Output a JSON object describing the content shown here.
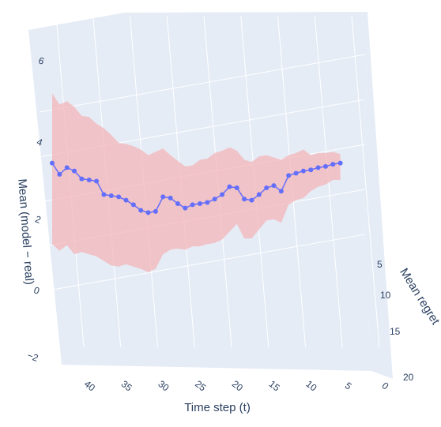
{
  "chart_data": {
    "type": "line",
    "projection": "3d",
    "title": "",
    "xlabel": "Time step (t)",
    "ylabel": "Mean regret",
    "zlabel": "Mean (model − real)",
    "x_ticks": [
      "0",
      "5",
      "10",
      "15",
      "20",
      "25",
      "30",
      "35",
      "40"
    ],
    "y_ticks": [
      "5",
      "10",
      "15",
      "20"
    ],
    "z_ticks": [
      "−2",
      "0",
      "2",
      "4",
      "6"
    ],
    "xlim": [
      0,
      40
    ],
    "zlim": [
      -2,
      6.5
    ],
    "grid": true,
    "colors": {
      "line": "#636efa",
      "band": "#f3b6b8",
      "background": "#e5ecf6",
      "grid": "#ffffff",
      "text": "#2a3f5f"
    },
    "series": [
      {
        "t": [
          40,
          39,
          38,
          37,
          36,
          35,
          34,
          33,
          32,
          31,
          30,
          29,
          28,
          27,
          26,
          25,
          24,
          23,
          22,
          21,
          20,
          19,
          18,
          17,
          16,
          15,
          14,
          13,
          12,
          11,
          10,
          9,
          8,
          7,
          6,
          5,
          4,
          3,
          2,
          1
        ],
        "mean": [
          3.1,
          2.6,
          2.9,
          2.75,
          2.4,
          2.35,
          2.3,
          1.7,
          1.65,
          1.6,
          1.45,
          1.25,
          1.0,
          0.9,
          0.95,
          1.6,
          1.55,
          1.3,
          1.1,
          1.25,
          1.3,
          1.35,
          1.5,
          1.7,
          2.05,
          2.0,
          1.5,
          1.45,
          1.7,
          2.0,
          2.1,
          1.85,
          2.55,
          2.65,
          2.75,
          2.8,
          2.9,
          2.95,
          3.05,
          3.1
        ],
        "upper": [
          6.2,
          5.7,
          5.85,
          5.6,
          5.2,
          5.15,
          4.85,
          4.65,
          4.35,
          4.0,
          3.95,
          3.85,
          3.7,
          3.45,
          3.6,
          3.75,
          3.45,
          3.2,
          2.95,
          3.0,
          3.25,
          3.3,
          3.55,
          3.65,
          3.8,
          3.65,
          3.25,
          3.15,
          3.4,
          3.45,
          3.35,
          3.25,
          3.45,
          3.55,
          3.7,
          3.45,
          3.55,
          3.55,
          3.6,
          3.5
        ],
        "lower": [
          -0.5,
          -0.8,
          -0.55,
          -0.95,
          -0.85,
          -0.95,
          -1.05,
          -1.25,
          -1.45,
          -1.5,
          -1.4,
          -1.5,
          -1.6,
          -1.75,
          -1.6,
          -0.95,
          -0.75,
          -0.7,
          -0.75,
          -0.6,
          -0.6,
          -0.5,
          -0.45,
          -0.3,
          0.05,
          0.4,
          -0.25,
          -0.25,
          0.15,
          0.55,
          0.6,
          0.45,
          1.25,
          1.45,
          1.55,
          1.85,
          2.05,
          2.15,
          2.35,
          2.35
        ]
      }
    ]
  }
}
